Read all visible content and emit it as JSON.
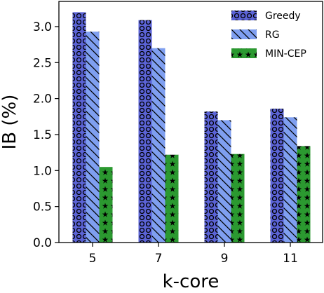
{
  "chart_data": {
    "type": "bar",
    "categories": [
      "5",
      "7",
      "9",
      "11"
    ],
    "series": [
      {
        "name": "Greedy",
        "values": [
          3.2,
          3.09,
          1.82,
          1.86
        ],
        "color": "#5b63d6",
        "pattern": "circles"
      },
      {
        "name": "RG",
        "values": [
          2.93,
          2.7,
          1.7,
          1.74
        ],
        "color": "#7f9ff0",
        "pattern": "backslash-hatch"
      },
      {
        "name": "MIN-CEP",
        "values": [
          1.05,
          1.22,
          1.23,
          1.34
        ],
        "color": "#2b9930",
        "pattern": "stars"
      }
    ],
    "xlabel": "k-core",
    "ylabel": "IB (%)",
    "ylim": [
      0,
      3.35
    ],
    "yticks": [
      "0.0",
      "0.5",
      "1.0",
      "1.5",
      "2.0",
      "2.5",
      "3.0"
    ],
    "grid": false,
    "legend_position": "top-right"
  }
}
